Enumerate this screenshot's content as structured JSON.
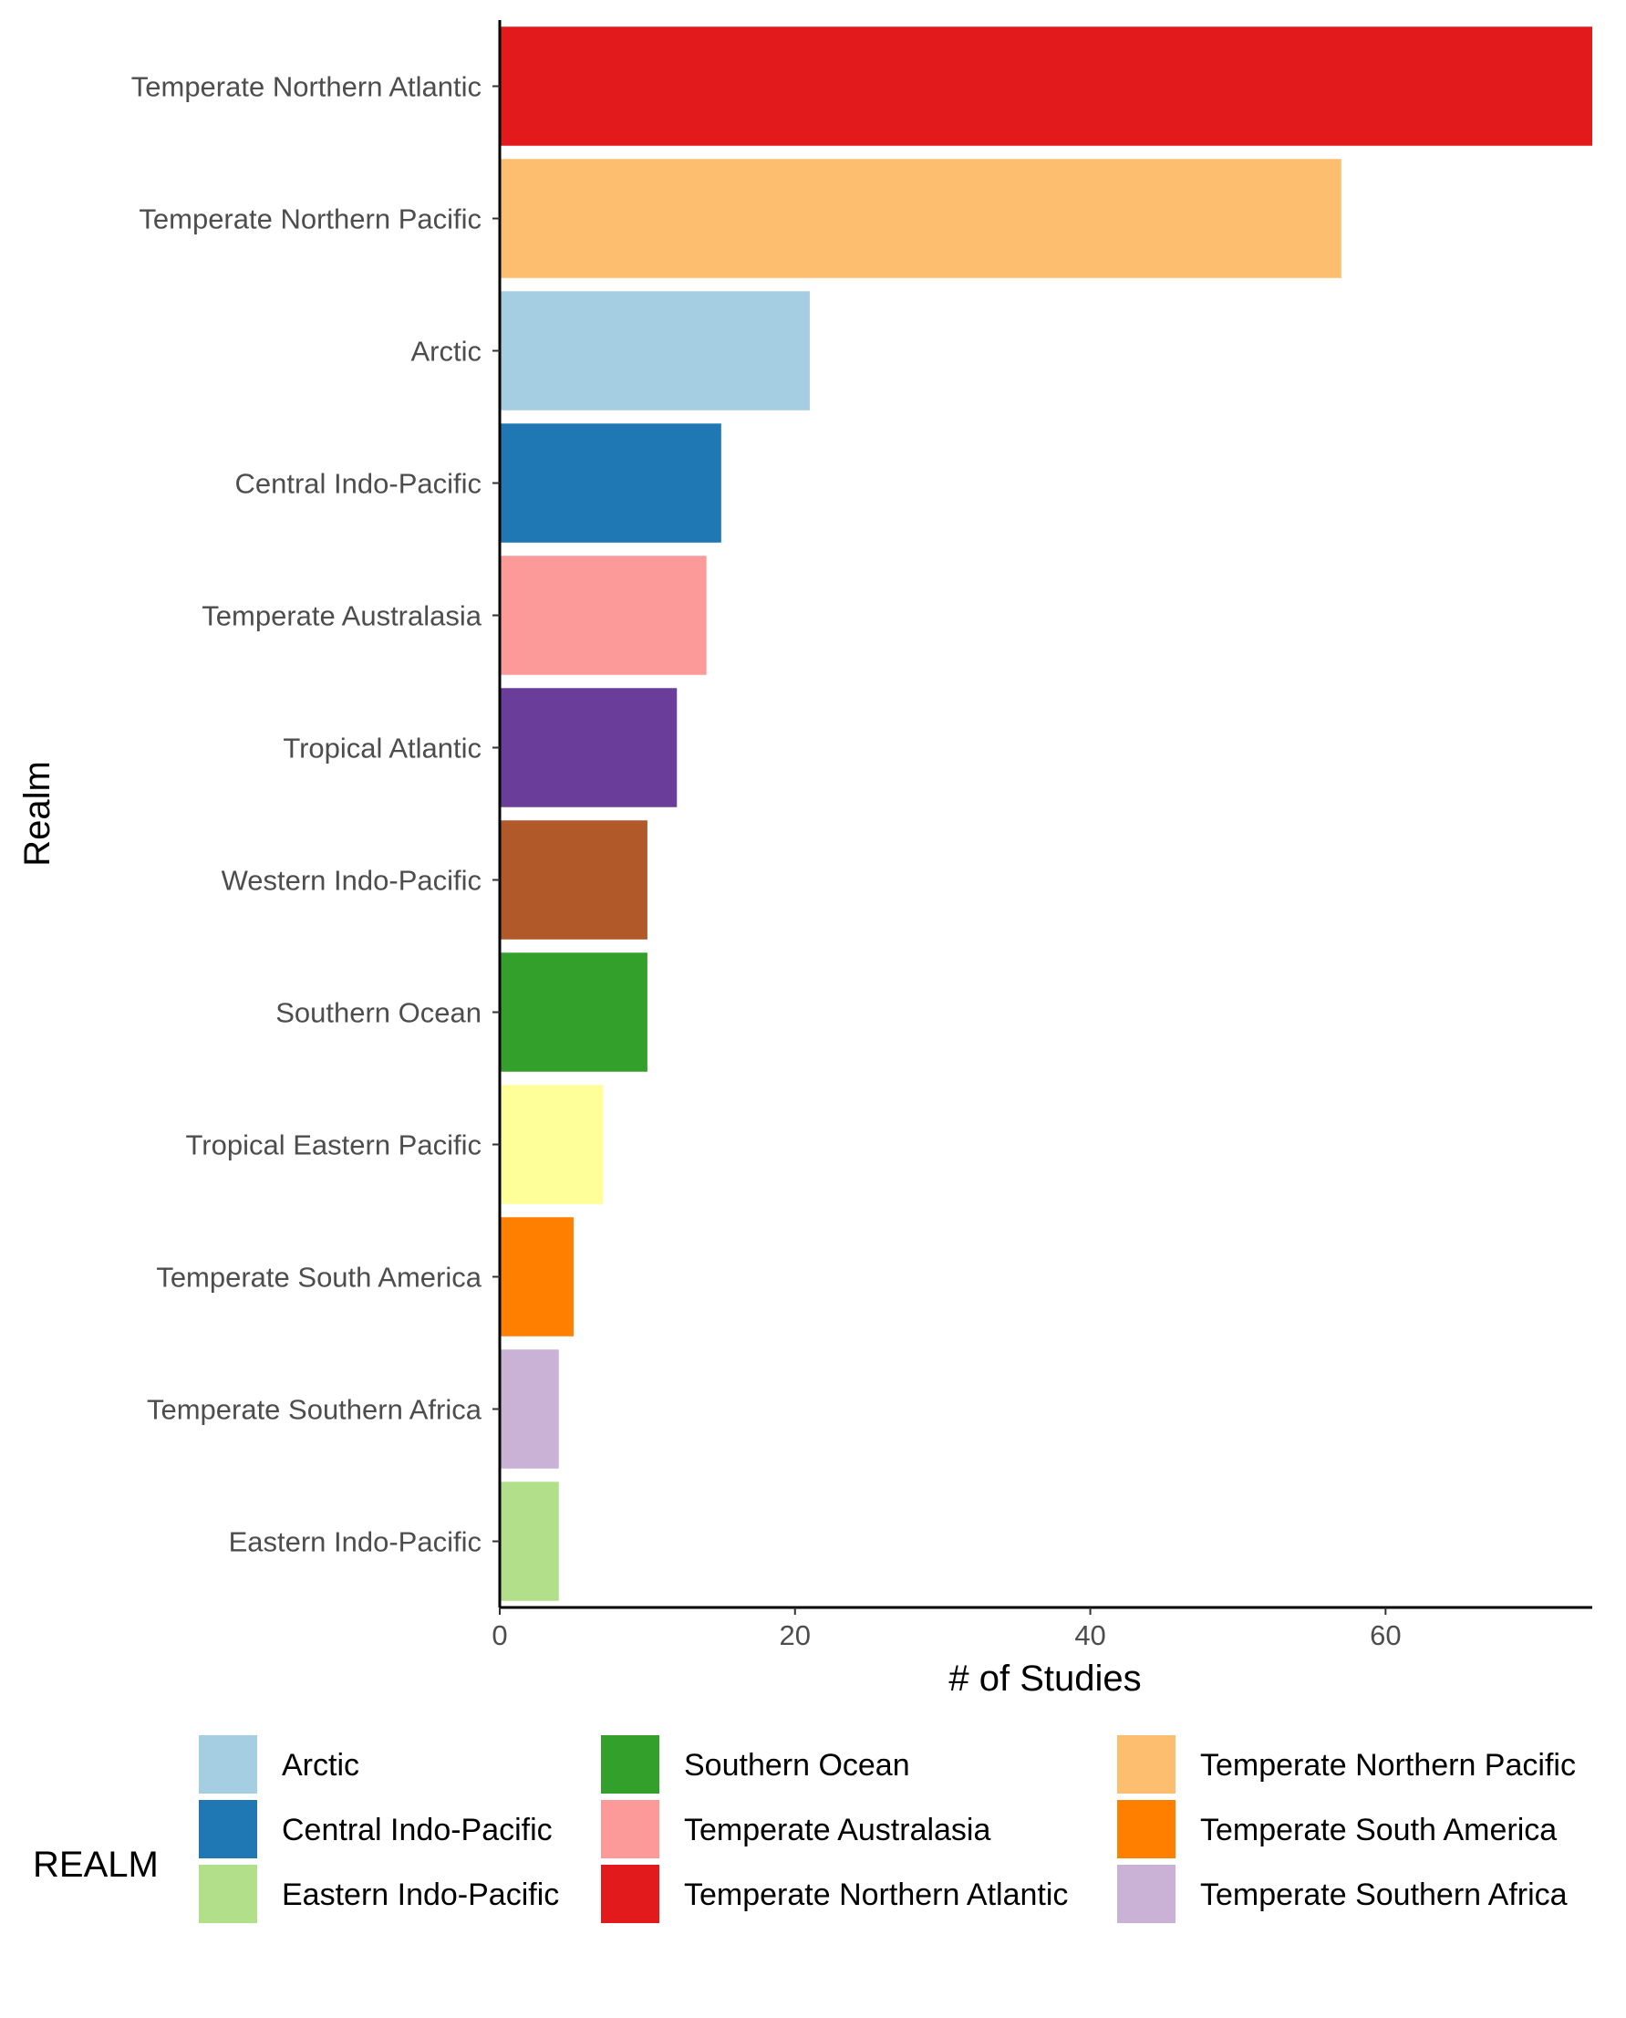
{
  "chart_data": {
    "type": "bar",
    "orientation": "horizontal",
    "xlabel": "# of Studies",
    "ylabel": "Realm",
    "xlim": [
      0,
      74
    ],
    "x_ticks": [
      0,
      20,
      40,
      60
    ],
    "grid": false,
    "categories": [
      "Temperate Northern Atlantic",
      "Temperate Northern Pacific",
      "Arctic",
      "Central Indo-Pacific",
      "Temperate Australasia",
      "Tropical Atlantic",
      "Western Indo-Pacific",
      "Southern Ocean",
      "Tropical Eastern Pacific",
      "Temperate South America",
      "Temperate Southern Africa",
      "Eastern Indo-Pacific"
    ],
    "values": [
      74,
      57,
      21,
      15,
      14,
      12,
      10,
      10,
      7,
      5,
      4,
      4
    ],
    "colors": [
      "#E31A1C",
      "#FDBF6F",
      "#A6CEE3",
      "#1F78B4",
      "#FB9A99",
      "#6A3D9A",
      "#B15928",
      "#33A02C",
      "#FFFF99",
      "#FF7F00",
      "#CAB2D6",
      "#B2DF8A"
    ],
    "legend": {
      "title": "REALM",
      "position": "bottom",
      "entries": [
        {
          "label": "Arctic",
          "color": "#A6CEE3"
        },
        {
          "label": "Central Indo-Pacific",
          "color": "#1F78B4"
        },
        {
          "label": "Eastern Indo-Pacific",
          "color": "#B2DF8A"
        },
        {
          "label": "Southern Ocean",
          "color": "#33A02C"
        },
        {
          "label": "Temperate Australasia",
          "color": "#FB9A99"
        },
        {
          "label": "Temperate Northern Atlantic",
          "color": "#E31A1C"
        },
        {
          "label": "Temperate Northern Pacific",
          "color": "#FDBF6F"
        },
        {
          "label": "Temperate South America",
          "color": "#FF7F00"
        },
        {
          "label": "Temperate Southern Africa",
          "color": "#CAB2D6"
        }
      ]
    }
  }
}
